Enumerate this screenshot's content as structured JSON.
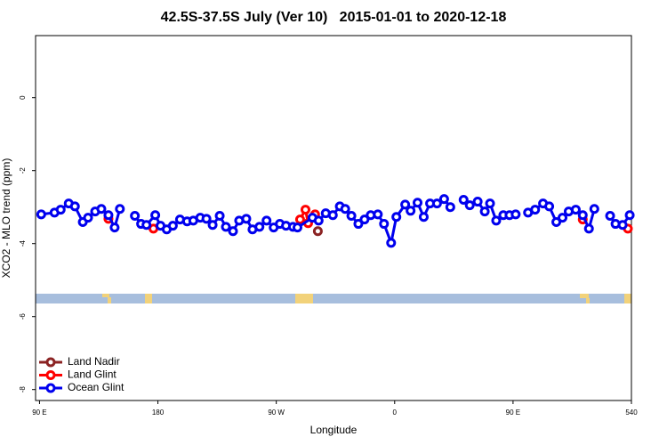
{
  "chart_data": {
    "type": "line",
    "title": "42.5S-37.5S July (Ver 10)   2015-01-01 to 2020-12-18",
    "x_label": "Longitude",
    "y_label": "XCO2 - MLO trend (ppm)",
    "xlim": [
      87,
      540
    ],
    "ylim": [
      -8.3,
      1.7
    ],
    "xticks": [
      {
        "value": 90,
        "label": "90 E"
      },
      180,
      {
        "value": 270,
        "label": "90 W"
      },
      {
        "value": 360,
        "label": "0"
      },
      {
        "value": 450,
        "label": "90 E"
      },
      540
    ],
    "yticks": [
      0,
      -2,
      -4,
      -6,
      -8
    ],
    "legend": "bottom-left",
    "series": [
      {
        "name": "Land Nadir",
        "color": "#8b2323",
        "x": [
          301.6
        ],
        "values": [
          -3.66
        ]
      },
      {
        "name": "Land Glint",
        "color": "#ff0000",
        "x": [
          142.4,
          null,
          176.6,
          null,
          288.1,
          292.2,
          294.2,
          299.5,
          null,
          503.0,
          null,
          537.3
        ],
        "values": [
          -3.32,
          null,
          -3.59,
          null,
          -3.34,
          -3.07,
          -3.44,
          -3.2,
          null,
          -3.34,
          null,
          -3.59
        ]
      },
      {
        "name": "Ocean Glint",
        "color": "#0000ee",
        "x": [
          91.3,
          101.4,
          106.1,
          112.2,
          116.9,
          122.9,
          126.9,
          132.3,
          137.0,
          142.4,
          147.1,
          151.1,
          null,
          162.5,
          167.2,
          171.3,
          178.0,
          182.0,
          186.7,
          191.4,
          196.8,
          202.2,
          206.9,
          212.2,
          216.9,
          221.6,
          227.0,
          231.7,
          237.1,
          241.8,
          247.2,
          251.9,
          257.2,
          262.6,
          268.0,
          272.7,
          277.4,
          282.7,
          286.1,
          297.5,
          302.2,
          307.6,
          313.0,
          318.3,
          322.4,
          327.1,
          332.4,
          337.1,
          341.8,
          347.2,
          351.9,
          357.3,
          361.3,
          368.0,
          372.1,
          377.4,
          382.1,
          386.9,
          392.2,
          397.6,
          402.3,
          null,
          412.4,
          417.1,
          423.1,
          428.5,
          432.5,
          437.2,
          442.6,
          447.3,
          452.0,
          null,
          461.4,
          466.8,
          472.8,
          477.5,
          482.9,
          487.6,
          492.3,
          497.7,
          503.0,
          507.7,
          511.8,
          null,
          523.8,
          527.9,
          533.3,
          538.7
        ],
        "values": [
          -3.2,
          -3.15,
          -3.07,
          -2.9,
          -2.98,
          -3.41,
          -3.29,
          -3.12,
          -3.05,
          -3.22,
          -3.56,
          -3.05,
          null,
          -3.24,
          -3.46,
          -3.49,
          -3.22,
          -3.51,
          -3.61,
          -3.51,
          -3.34,
          -3.39,
          -3.37,
          -3.29,
          -3.32,
          -3.49,
          -3.24,
          -3.54,
          -3.66,
          -3.37,
          -3.32,
          -3.61,
          -3.54,
          -3.37,
          -3.56,
          -3.46,
          -3.51,
          -3.54,
          -3.56,
          -3.29,
          -3.37,
          -3.17,
          -3.22,
          -2.98,
          -3.05,
          -3.24,
          -3.46,
          -3.34,
          -3.22,
          -3.2,
          -3.46,
          -3.98,
          -3.27,
          -2.93,
          -3.1,
          -2.88,
          -3.27,
          -2.9,
          -2.9,
          -2.78,
          -3.0,
          null,
          -2.8,
          -2.95,
          -2.85,
          -3.12,
          -2.9,
          -3.37,
          -3.22,
          -3.22,
          -3.2,
          null,
          -3.15,
          -3.07,
          -2.9,
          -2.98,
          -3.41,
          -3.29,
          -3.12,
          -3.07,
          -3.22,
          -3.59,
          -3.05,
          null,
          -3.24,
          -3.46,
          -3.49,
          -3.22
        ]
      }
    ]
  }
}
